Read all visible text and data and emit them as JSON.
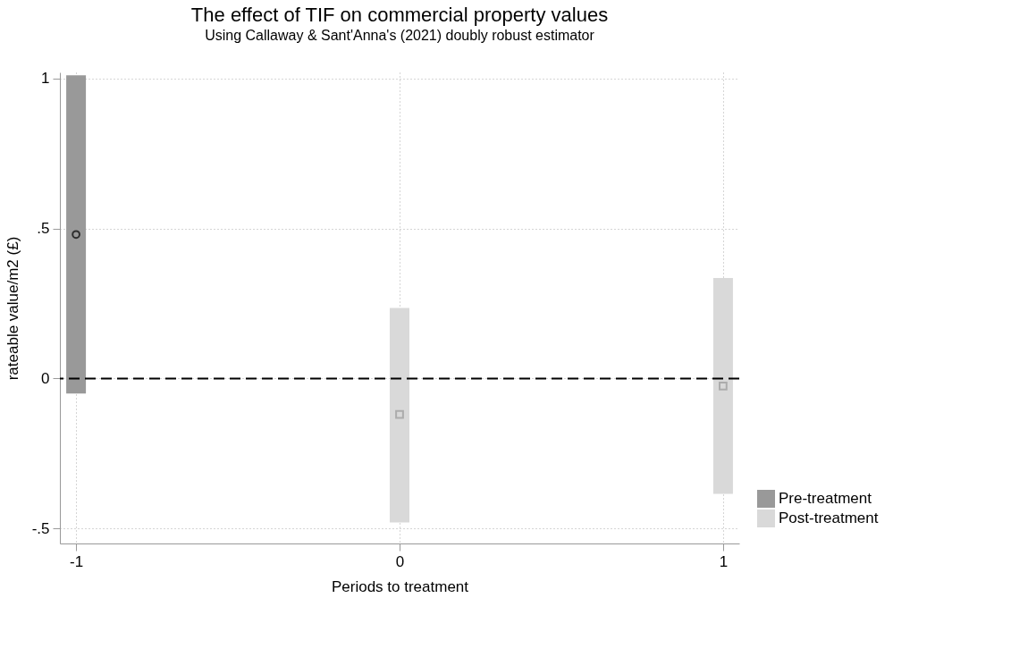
{
  "chart_data": {
    "type": "bar",
    "title": "The effect of TIF on commercial property values",
    "subtitle": "Using Callaway & Sant'Anna's (2021) doubly robust estimator",
    "xlabel": "Periods to treatment",
    "ylabel": "rateable value/m2 (£)",
    "series": [
      {
        "name": "Pre-treatment",
        "type": "bar",
        "color": "#999999",
        "x": [
          -1
        ],
        "base": [
          -0.05
        ],
        "values": [
          1.06
        ]
      },
      {
        "name": "Post-treatment",
        "type": "bar",
        "color": "#d9d9d9",
        "x": [
          0,
          1
        ],
        "base": [
          -0.48,
          -0.385
        ],
        "values": [
          0.715,
          0.72
        ]
      },
      {
        "type": "scatter",
        "color": "#000000",
        "marker": "circle",
        "x": [
          -1
        ],
        "values": [
          0.48
        ]
      },
      {
        "type": "scatter",
        "color": "#999999",
        "marker": "square",
        "x": [
          0,
          1
        ],
        "values": [
          -0.12,
          -0.025
        ]
      }
    ],
    "xlim": [
      -1.05,
      1.05
    ],
    "xticks": [
      -1,
      0,
      1
    ],
    "ylim": [
      -0.55,
      1.02
    ],
    "yticks": [
      {
        "value": -0.5,
        "label": "-.5"
      },
      0,
      {
        "value": 0.5,
        "label": ".5"
      },
      1
    ],
    "ref_lines": [
      {
        "axis": "y",
        "value": 0,
        "color": "#000000",
        "line_style": "dashed"
      }
    ],
    "grid": true,
    "legend": "bottom right"
  }
}
